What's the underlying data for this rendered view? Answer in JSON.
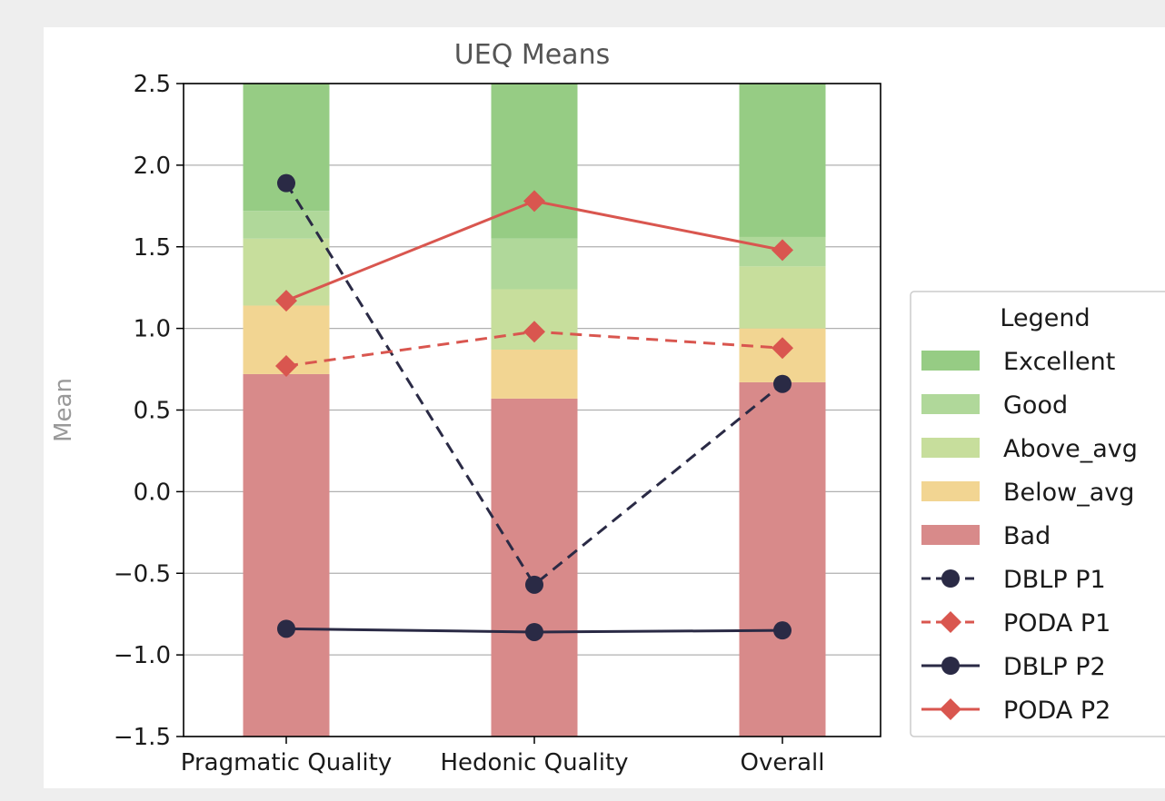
{
  "chart_data": {
    "type": "bar",
    "title": "UEQ Means",
    "xlabel": "",
    "ylabel": "Mean",
    "ylim": [
      -1.5,
      2.5
    ],
    "yticks": [
      -1.5,
      -1.0,
      -0.5,
      0.0,
      0.5,
      1.0,
      1.5,
      2.0,
      2.5
    ],
    "ytick_labels": [
      "−1.5",
      "−1.0",
      "−0.5",
      "0.0",
      "0.5",
      "1.0",
      "1.5",
      "2.0",
      "2.5"
    ],
    "grid": "horizontal",
    "categories": [
      "Pragmatic Quality",
      "Hedonic Quality",
      "Overall"
    ],
    "benchmark_bands": [
      {
        "name": "Bad",
        "color": "#d88a8a",
        "bounds": [
          [
            -1.5,
            0.72
          ],
          [
            -1.5,
            0.57
          ],
          [
            -1.5,
            0.67
          ]
        ]
      },
      {
        "name": "Below_avg",
        "color": "#f2d592",
        "bounds": [
          [
            0.72,
            1.14
          ],
          [
            0.57,
            0.87
          ],
          [
            0.67,
            1.0
          ]
        ]
      },
      {
        "name": "Above_avg",
        "color": "#c7de9c",
        "bounds": [
          [
            1.14,
            1.55
          ],
          [
            0.87,
            1.24
          ],
          [
            1.0,
            1.38
          ]
        ]
      },
      {
        "name": "Good",
        "color": "#b0d89a",
        "bounds": [
          [
            1.55,
            1.72
          ],
          [
            1.24,
            1.55
          ],
          [
            1.38,
            1.56
          ]
        ]
      },
      {
        "name": "Excellent",
        "color": "#96cc84",
        "bounds": [
          [
            1.72,
            2.5
          ],
          [
            1.55,
            2.5
          ],
          [
            1.56,
            2.5
          ]
        ]
      }
    ],
    "series": [
      {
        "name": "DBLP P1",
        "values": [
          1.89,
          -0.57,
          0.66
        ],
        "color": "#2a2a45",
        "linestyle": "dashed",
        "marker": "circle"
      },
      {
        "name": "PODA P1",
        "values": [
          0.77,
          0.98,
          0.88
        ],
        "color": "#d9564f",
        "linestyle": "dashed",
        "marker": "diamond"
      },
      {
        "name": "DBLP P2",
        "values": [
          -0.84,
          -0.86,
          -0.85
        ],
        "color": "#2a2a45",
        "linestyle": "solid",
        "marker": "circle"
      },
      {
        "name": "PODA P2",
        "values": [
          1.17,
          1.78,
          1.48
        ],
        "color": "#d9564f",
        "linestyle": "solid",
        "marker": "diamond"
      }
    ],
    "legend": {
      "title": "Legend",
      "placement": "outside-right",
      "entries": [
        "Excellent",
        "Good",
        "Above_avg",
        "Below_avg",
        "Bad",
        "DBLP P1",
        "PODA P1",
        "DBLP P2",
        "PODA P2"
      ]
    }
  }
}
